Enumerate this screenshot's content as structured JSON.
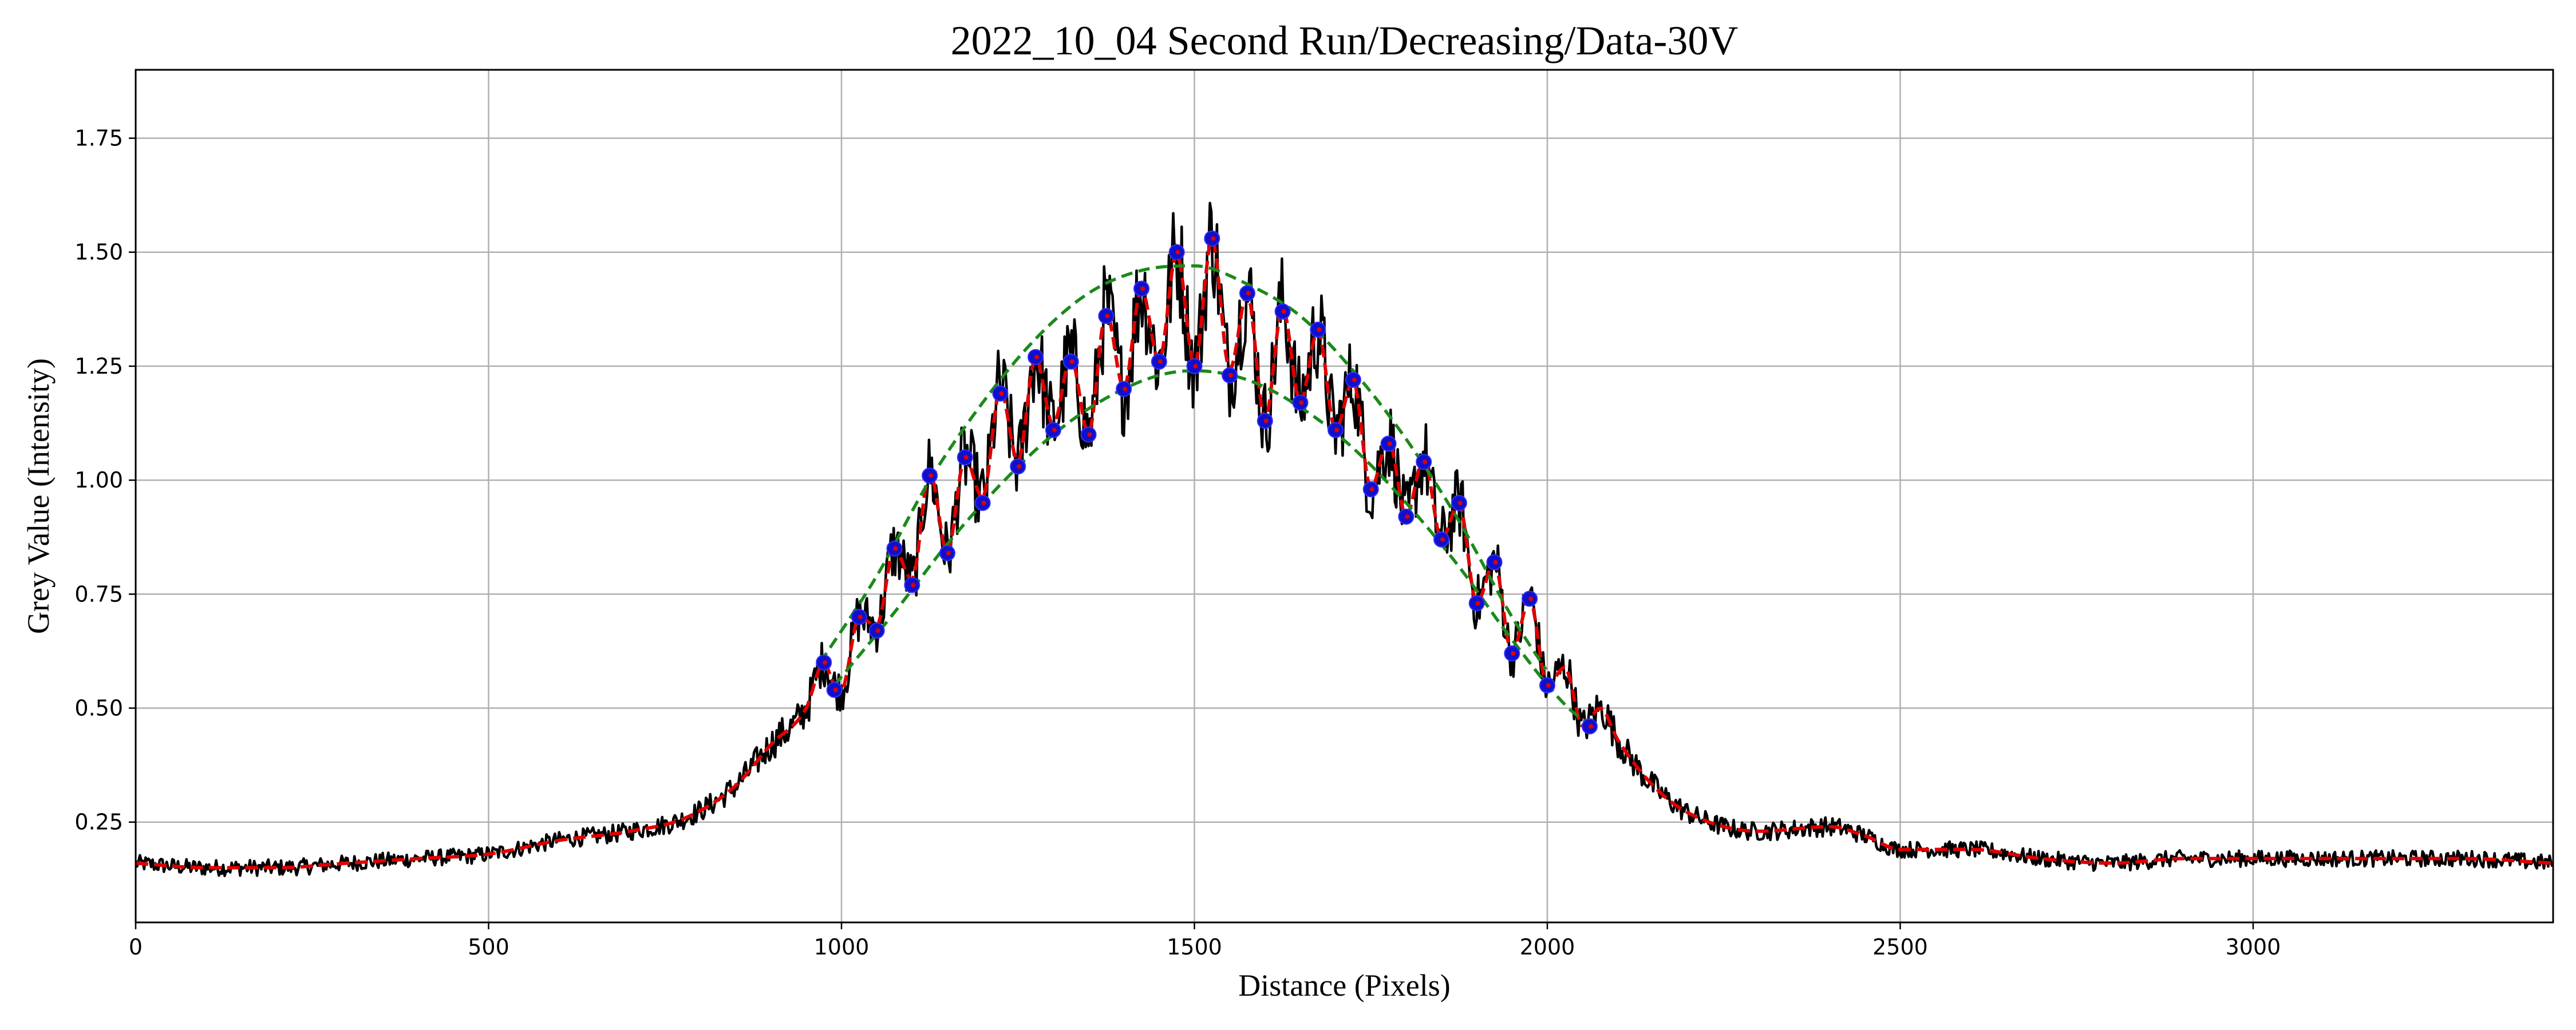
{
  "chart_data": {
    "type": "line",
    "title": "2022_10_04 Second Run/Decreasing/Data-30V",
    "xlabel": "Distance (Pixels)",
    "ylabel": "Grey Value (Intensity)",
    "xlim": [
      0,
      3425
    ],
    "ylim": [
      0.03,
      1.9
    ],
    "x_ticks": [
      0,
      500,
      1000,
      1500,
      2000,
      2500,
      3000
    ],
    "x_tick_labels": [
      "0",
      "500",
      "1000",
      "1500",
      "2000",
      "2500",
      "3000"
    ],
    "y_ticks": [
      0.25,
      0.5,
      0.75,
      1.0,
      1.25,
      1.5,
      1.75
    ],
    "y_tick_labels": [
      "0.25",
      "0.50",
      "0.75",
      "1.00",
      "1.25",
      "1.50",
      "1.75"
    ],
    "grid": true,
    "colors": {
      "raw": "#000000",
      "smoothed": "#e00000",
      "envelope": "#1a8a1a",
      "peak_marker": "#1010cc",
      "grid": "#b0b0b0"
    },
    "series": [
      {
        "style": "raw-noisy-solid",
        "color": "#000000",
        "x": [
          0,
          100,
          200,
          300,
          400,
          500,
          600,
          700,
          780,
          850,
          900,
          950,
          975,
          990,
          1000,
          1025,
          1050,
          1075,
          1100,
          1125,
          1150,
          1175,
          1200,
          1225,
          1250,
          1275,
          1300,
          1325,
          1350,
          1375,
          1400,
          1425,
          1450,
          1475,
          1500,
          1525,
          1550,
          1575,
          1600,
          1625,
          1650,
          1675,
          1700,
          1725,
          1750,
          1775,
          1800,
          1825,
          1850,
          1875,
          1900,
          1925,
          1950,
          1975,
          2000,
          2025,
          2050,
          2075,
          2100,
          2150,
          2200,
          2300,
          2400,
          2450,
          2500,
          2600,
          2700,
          2800,
          2900,
          3000,
          3100,
          3200,
          3300,
          3425
        ],
        "y": [
          0.16,
          0.15,
          0.15,
          0.16,
          0.17,
          0.18,
          0.21,
          0.23,
          0.26,
          0.33,
          0.42,
          0.5,
          0.6,
          0.55,
          0.54,
          0.7,
          0.68,
          0.85,
          0.78,
          1.02,
          0.84,
          1.05,
          0.96,
          1.2,
          1.04,
          1.27,
          1.12,
          1.27,
          1.1,
          1.37,
          1.2,
          1.42,
          1.26,
          1.5,
          1.25,
          1.53,
          1.24,
          1.41,
          1.13,
          1.38,
          1.17,
          1.33,
          1.11,
          1.22,
          0.98,
          1.09,
          0.92,
          1.05,
          0.87,
          0.95,
          0.73,
          0.82,
          0.62,
          0.74,
          0.55,
          0.59,
          0.46,
          0.5,
          0.43,
          0.33,
          0.27,
          0.23,
          0.24,
          0.22,
          0.19,
          0.19,
          0.17,
          0.16,
          0.17,
          0.17,
          0.17,
          0.17,
          0.17,
          0.16
        ]
      },
      {
        "style": "smoothed-dashed",
        "color": "#e00000",
        "x": [
          0,
          100,
          200,
          300,
          400,
          500,
          600,
          700,
          780,
          850,
          900,
          950,
          975,
          990,
          1000,
          1025,
          1050,
          1075,
          1100,
          1125,
          1150,
          1175,
          1200,
          1225,
          1250,
          1275,
          1300,
          1325,
          1350,
          1375,
          1400,
          1425,
          1450,
          1475,
          1500,
          1525,
          1550,
          1575,
          1600,
          1625,
          1650,
          1675,
          1700,
          1725,
          1750,
          1775,
          1800,
          1825,
          1850,
          1875,
          1900,
          1925,
          1950,
          1975,
          2000,
          2025,
          2050,
          2075,
          2100,
          2150,
          2200,
          2300,
          2400,
          2450,
          2500,
          2600,
          2700,
          2800,
          2900,
          3000,
          3100,
          3200,
          3300,
          3425
        ],
        "y": [
          0.16,
          0.15,
          0.15,
          0.16,
          0.17,
          0.18,
          0.21,
          0.23,
          0.26,
          0.33,
          0.42,
          0.5,
          0.6,
          0.55,
          0.54,
          0.7,
          0.68,
          0.85,
          0.78,
          1.02,
          0.84,
          1.05,
          0.96,
          1.2,
          1.04,
          1.27,
          1.12,
          1.27,
          1.1,
          1.37,
          1.2,
          1.42,
          1.26,
          1.5,
          1.25,
          1.53,
          1.24,
          1.41,
          1.13,
          1.38,
          1.17,
          1.33,
          1.11,
          1.22,
          0.98,
          1.09,
          0.92,
          1.05,
          0.87,
          0.95,
          0.73,
          0.82,
          0.62,
          0.74,
          0.55,
          0.59,
          0.46,
          0.5,
          0.43,
          0.33,
          0.27,
          0.23,
          0.24,
          0.22,
          0.19,
          0.19,
          0.17,
          0.16,
          0.17,
          0.17,
          0.17,
          0.17,
          0.17,
          0.16
        ]
      },
      {
        "style": "upper-envelope-dashed",
        "color": "#1a8a1a",
        "x": [
          970,
          1050,
          1125,
          1200,
          1275,
          1350,
          1425,
          1500,
          1575,
          1650,
          1725,
          1800,
          1875,
          1950,
          2000
        ],
        "y": [
          0.6,
          0.79,
          1.0,
          1.17,
          1.31,
          1.41,
          1.46,
          1.47,
          1.43,
          1.36,
          1.24,
          1.09,
          0.91,
          0.7,
          0.58
        ]
      },
      {
        "style": "lower-envelope-dashed",
        "color": "#1a8a1a",
        "x": [
          990,
          1075,
          1150,
          1225,
          1300,
          1375,
          1450,
          1500,
          1575,
          1650,
          1725,
          1800,
          1875,
          1950,
          2030,
          2065
        ],
        "y": [
          0.55,
          0.71,
          0.86,
          0.99,
          1.1,
          1.18,
          1.23,
          1.24,
          1.22,
          1.16,
          1.07,
          0.95,
          0.81,
          0.65,
          0.5,
          0.46
        ]
      },
      {
        "style": "peak-markers",
        "color": "#1010cc",
        "x": [
          975,
          990,
          1025,
          1050,
          1075,
          1100,
          1125,
          1150,
          1175,
          1200,
          1225,
          1250,
          1275,
          1300,
          1325,
          1350,
          1375,
          1400,
          1425,
          1450,
          1475,
          1500,
          1525,
          1550,
          1575,
          1600,
          1625,
          1650,
          1675,
          1700,
          1725,
          1750,
          1775,
          1800,
          1825,
          1850,
          1875,
          1900,
          1925,
          1950,
          1975,
          2000,
          2060
        ],
        "y": [
          0.6,
          0.54,
          0.7,
          0.67,
          0.85,
          0.77,
          1.01,
          0.84,
          1.05,
          0.95,
          1.19,
          1.03,
          1.27,
          1.11,
          1.26,
          1.1,
          1.36,
          1.2,
          1.42,
          1.26,
          1.5,
          1.25,
          1.53,
          1.23,
          1.41,
          1.13,
          1.37,
          1.17,
          1.33,
          1.11,
          1.22,
          0.98,
          1.08,
          0.92,
          1.04,
          0.87,
          0.95,
          0.73,
          0.82,
          0.62,
          0.74,
          0.55,
          0.46
        ]
      }
    ]
  }
}
